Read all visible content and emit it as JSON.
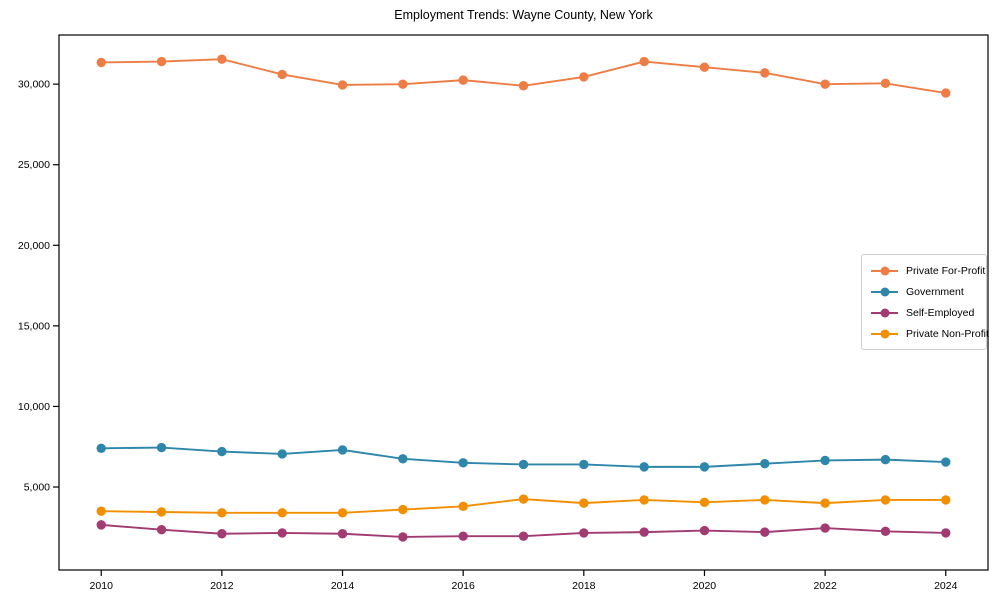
{
  "title": "Employment Trends: Wayne County, New York",
  "chart_data": {
    "type": "line",
    "x": [
      2010,
      2011,
      2012,
      2013,
      2014,
      2015,
      2016,
      2017,
      2018,
      2019,
      2020,
      2021,
      2022,
      2023,
      2024
    ],
    "series": [
      {
        "name": "Private For-Profit",
        "color": "#ED7D45",
        "values": [
          31350,
          31400,
          31550,
          30600,
          29950,
          30000,
          30250,
          29900,
          30450,
          31400,
          31050,
          30700,
          30000,
          30050,
          29450
        ]
      },
      {
        "name": "Government",
        "color": "#2E86AB",
        "values": [
          7400,
          7450,
          7200,
          7050,
          7300,
          6750,
          6500,
          6400,
          6400,
          6250,
          6250,
          6450,
          6650,
          6700,
          6550
        ]
      },
      {
        "name": "Self-Employed",
        "color": "#A23B72",
        "values": [
          2650,
          2350,
          2100,
          2150,
          2100,
          1900,
          1950,
          1950,
          2150,
          2200,
          2300,
          2200,
          2450,
          2250,
          2150
        ]
      },
      {
        "name": "Private Non-Profit",
        "color": "#F18F01",
        "values": [
          3500,
          3450,
          3400,
          3400,
          3400,
          3600,
          3800,
          4250,
          4000,
          4200,
          4050,
          4200,
          4000,
          4200,
          4200
        ]
      }
    ],
    "title": "Employment Trends: Wayne County, New York",
    "xlabel": "",
    "ylabel": "",
    "xlim": [
      2009.3,
      2024.7
    ],
    "ylim": [
      -150,
      33050
    ],
    "x_ticks": [
      2010,
      2012,
      2014,
      2016,
      2018,
      2020,
      2022,
      2024
    ],
    "y_ticks": [
      5000,
      10000,
      15000,
      20000,
      25000,
      30000
    ],
    "grid": false,
    "legend_position": "right",
    "marker": "circle"
  }
}
